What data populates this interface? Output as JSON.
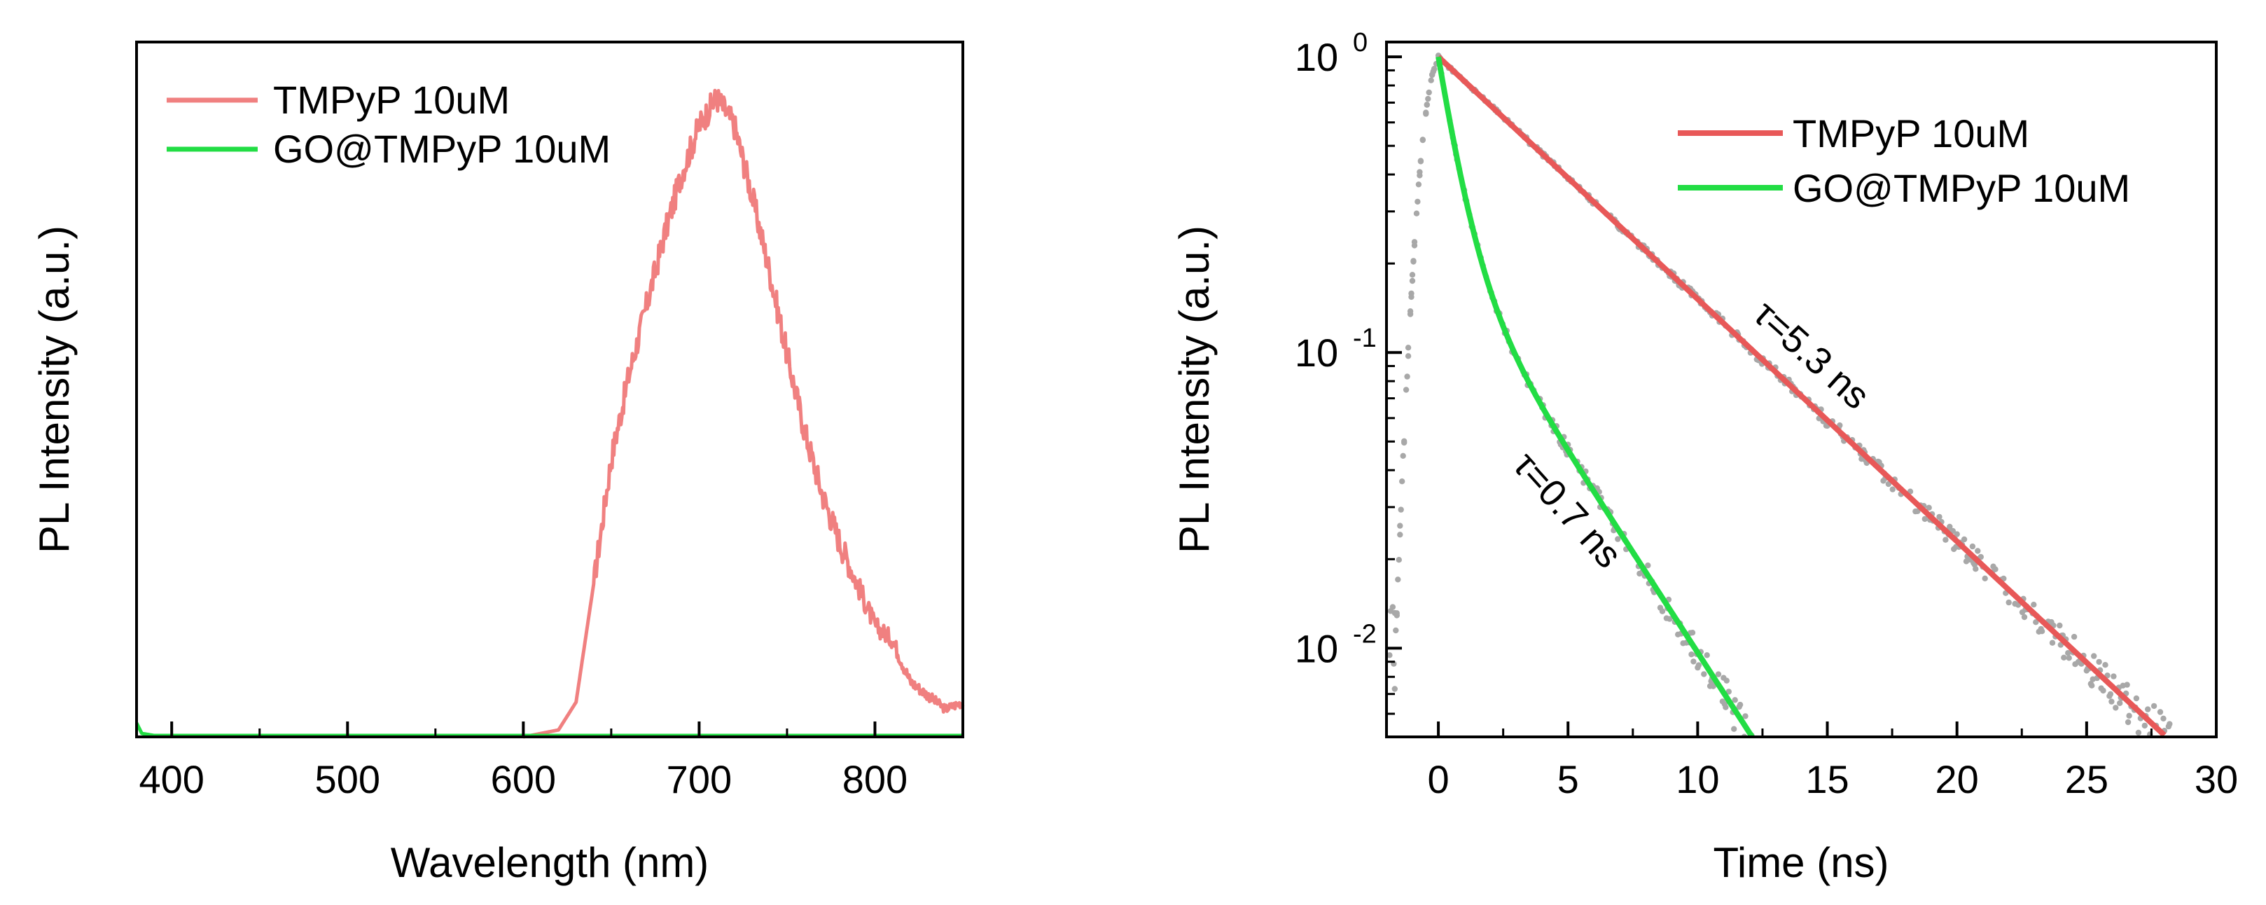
{
  "chart_data": [
    {
      "type": "line",
      "xlabel": "Wavelength (nm)",
      "ylabel": "PL Intensity (a.u.)",
      "xlim": [
        380,
        850
      ],
      "ylim": [
        0,
        1.0
      ],
      "xticks": [
        "400",
        "500",
        "600",
        "700",
        "800"
      ],
      "xtick_values": [
        400,
        500,
        600,
        700,
        800
      ],
      "legend_position": "top-left",
      "series": [
        {
          "name": "TMPyP 10uM",
          "color": "#F08080",
          "x": [
            600,
            620,
            630,
            640,
            650,
            660,
            670,
            680,
            690,
            700,
            710,
            720,
            730,
            740,
            750,
            760,
            770,
            780,
            790,
            800,
            810,
            820,
            830,
            840,
            850
          ],
          "y": [
            0.0,
            0.01,
            0.05,
            0.22,
            0.4,
            0.52,
            0.62,
            0.72,
            0.81,
            0.88,
            0.92,
            0.88,
            0.78,
            0.67,
            0.55,
            0.44,
            0.35,
            0.28,
            0.22,
            0.16,
            0.14,
            0.08,
            0.06,
            0.04,
            0.05
          ]
        },
        {
          "name": "GO@TMPyP 10uM",
          "color": "#22DD44",
          "x": [
            380,
            383,
            390,
            400,
            500,
            600,
            700,
            800,
            850
          ],
          "y": [
            0.02,
            0.005,
            0.002,
            0.002,
            0.002,
            0.002,
            0.002,
            0.002,
            0.002
          ]
        }
      ]
    },
    {
      "type": "line",
      "xlabel": "Time (ns)",
      "ylabel": "PL Intensity (a.u.)",
      "xlim": [
        -2,
        30
      ],
      "ylim_log10": [
        -2.3,
        0.05
      ],
      "yscale": "log",
      "xticks": [
        "0",
        "5",
        "10",
        "15",
        "20",
        "25",
        "30"
      ],
      "xtick_values": [
        0,
        5,
        10,
        15,
        20,
        25,
        30
      ],
      "yticks": [
        {
          "base": "10",
          "exp": "0",
          "log10": 0
        },
        {
          "base": "10",
          "exp": "-1",
          "log10": -1
        },
        {
          "base": "10",
          "exp": "-2",
          "log10": -2
        }
      ],
      "legend_position": "top-right",
      "series": [
        {
          "name": "TMPyP 10uM",
          "color": "#E85858",
          "model": "single-exp",
          "tau_ns": 5.3,
          "x_range": [
            0,
            28
          ]
        },
        {
          "name": "GO@TMPyP 10uM",
          "color": "#22DD44",
          "model": "bi-exp",
          "tau_ns": 0.7,
          "x_range": [
            0,
            16.5
          ]
        }
      ],
      "annotations": [
        {
          "text": "τ=5.3 ns",
          "color": "#FF2020"
        },
        {
          "text": "τ=0.7 ns",
          "color": "#22DD44"
        }
      ],
      "scatter_color": "#A8A8A8"
    }
  ]
}
